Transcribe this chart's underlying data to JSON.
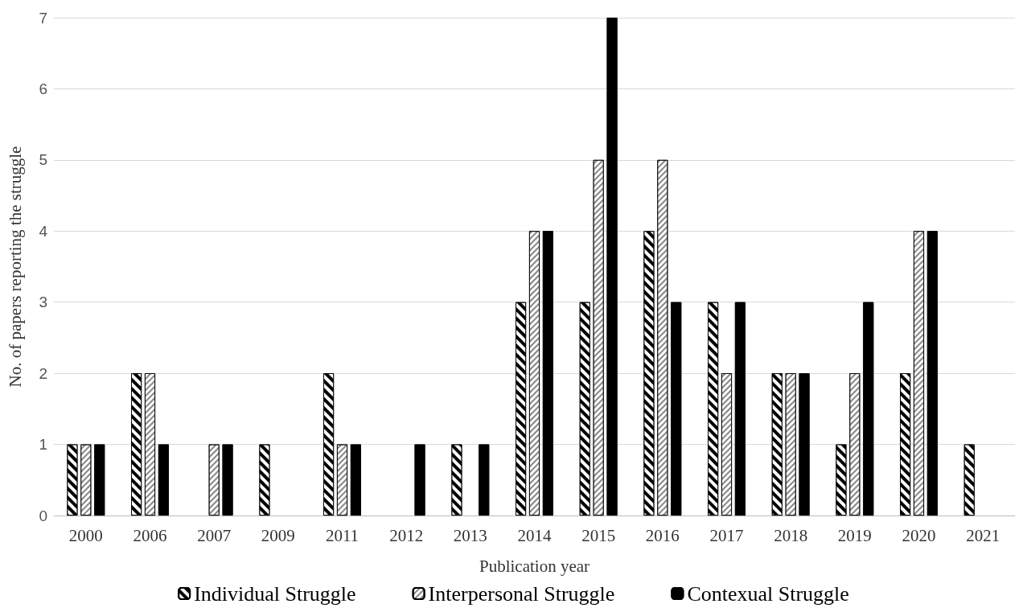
{
  "chart_data": {
    "type": "bar",
    "xlabel": "Publication year",
    "ylabel": "No. of papers reporting the struggle",
    "categories": [
      "2000",
      "2006",
      "2007",
      "2009",
      "2011",
      "2012",
      "2013",
      "2014",
      "2015",
      "2016",
      "2017",
      "2018",
      "2019",
      "2020",
      "2021"
    ],
    "series": [
      {
        "name": "Individual Struggle",
        "color": "#ffffff",
        "values": [
          1,
          2,
          null,
          1,
          2,
          null,
          1,
          3,
          3,
          4,
          3,
          2,
          1,
          2,
          1
        ]
      },
      {
        "name": "Interpersonal Struggle",
        "color": "#ffffff",
        "values": [
          1,
          2,
          1,
          null,
          1,
          null,
          null,
          4,
          5,
          5,
          2,
          2,
          2,
          4,
          null
        ]
      },
      {
        "name": "Contexual Struggle",
        "color": "#000000",
        "values": [
          1,
          1,
          1,
          null,
          1,
          1,
          1,
          4,
          7,
          3,
          3,
          2,
          3,
          4,
          null
        ]
      }
    ],
    "ylim": [
      0,
      7
    ],
    "yticks": [
      0,
      1,
      2,
      3,
      4,
      5,
      6,
      7
    ],
    "grid": "y",
    "legend": "bottom"
  }
}
